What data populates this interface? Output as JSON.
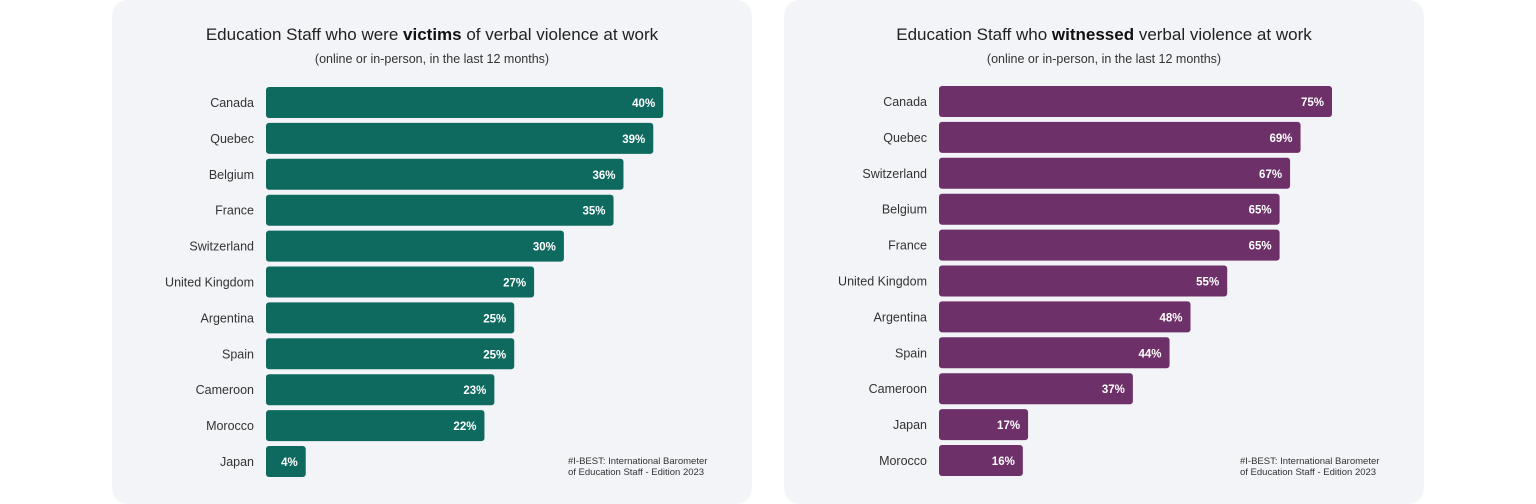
{
  "chart_data": [
    {
      "type": "bar",
      "orientation": "horizontal",
      "title_parts": [
        "Education Staff who were ",
        "victims",
        " of verbal violence at work"
      ],
      "subtitle": "(online or in-person, in the last 12 months)",
      "categories": [
        "Canada",
        "Quebec",
        "Belgium",
        "France",
        "Switzerland",
        "United Kingdom",
        "Argentina",
        "Spain",
        "Cameroon",
        "Morocco",
        "Japan"
      ],
      "values": [
        40,
        39,
        36,
        35,
        30,
        27,
        25,
        25,
        23,
        22,
        4
      ],
      "value_labels": [
        "40%",
        "39%",
        "36%",
        "35%",
        "30%",
        "27%",
        "25%",
        "25%",
        "23%",
        "22%",
        "4%"
      ],
      "unit": "%",
      "color": "#0e6a5f",
      "source_lines": [
        "#I-BEST: International Barometer",
        "of Education Staff - Edition 2023"
      ]
    },
    {
      "type": "bar",
      "orientation": "horizontal",
      "title_parts": [
        "Education Staff who ",
        "witnessed",
        " verbal violence at work"
      ],
      "subtitle": "(online or in-person, in the last 12 months)",
      "categories": [
        "Canada",
        "Quebec",
        "Switzerland",
        "Belgium",
        "France",
        "United Kingdom",
        "Argentina",
        "Spain",
        "Cameroon",
        "Japan",
        "Morocco"
      ],
      "values": [
        75,
        69,
        67,
        65,
        65,
        55,
        48,
        44,
        37,
        17,
        16
      ],
      "value_labels": [
        "75%",
        "69%",
        "67%",
        "65%",
        "65%",
        "55%",
        "48%",
        "44%",
        "37%",
        "17%",
        "16%"
      ],
      "unit": "%",
      "color": "#6d3068",
      "source_lines": [
        "#I-BEST: International Barometer",
        "of Education Staff - Edition 2023"
      ]
    }
  ]
}
